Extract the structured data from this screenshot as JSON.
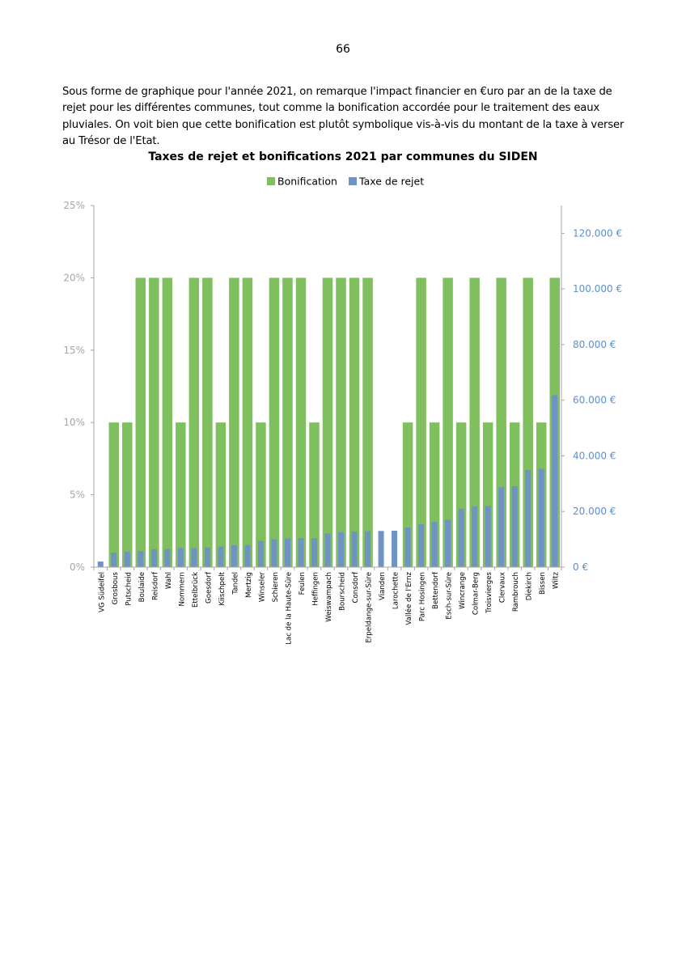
{
  "page": {
    "number": "66",
    "intro": "Sous forme de graphique pour l'année 2021, on remarque l'impact financier en €uro par an de la taxe de rejet pour les différentes communes, tout comme la bonification accordée pour le traitement des eaux pluviales. On voit bien que cette bonification est plutôt symbolique vis-à-vis du montant de la taxe à verser au Trésor de l'Etat."
  },
  "chart_data": {
    "type": "bar",
    "title": "Taxes de rejet et bonifications 2021 par communes du SIDEN",
    "legend_position": "top",
    "grid": false,
    "colors": {
      "bonification": "#7fbf5e",
      "taxe": "#6f93c5",
      "right_axis_text": "#5b8fd1",
      "left_axis_text": "#a6a6a6"
    },
    "categories": [
      "VG Südeifel",
      "Grosbous",
      "Putscheid",
      "Boulaide",
      "Reisdorf",
      "Wahl",
      "Nommern",
      "Ettelbrück",
      "Goesdorf",
      "Kiischpelt",
      "Tandel",
      "Mertzig",
      "Winseler",
      "Schieren",
      "Lac de la Haute-Sûre",
      "Feulen",
      "Heffingen",
      "Weiswampach",
      "Bourscheid",
      "Consdorf",
      "Erpeldange-sur-Sûre",
      "Vianden",
      "Larochette",
      "Vallée de l'Ernz",
      "Parc Hosingen",
      "Bettendorf",
      "Esch-sur-Sûre",
      "Wincrange",
      "Colmar-Berg",
      "Troisvierges",
      "Clervaux",
      "Rambrouch",
      "Diekirch",
      "Bissen",
      "Wiltz"
    ],
    "series": [
      {
        "name": "Bonification",
        "axis": "left",
        "unit": "%",
        "values": [
          0,
          10,
          10,
          20,
          20,
          20,
          10,
          20,
          20,
          10,
          20,
          20,
          10,
          20,
          20,
          20,
          10,
          20,
          20,
          20,
          20,
          0,
          0,
          10,
          20,
          10,
          20,
          10,
          20,
          10,
          20,
          10,
          20,
          10,
          20
        ]
      },
      {
        "name": "Taxe de rejet",
        "axis": "right",
        "unit": "€",
        "values": [
          2000,
          5200,
          5500,
          5800,
          6400,
          6500,
          6800,
          6900,
          7100,
          7400,
          7900,
          8000,
          9400,
          10000,
          10300,
          10400,
          10400,
          12100,
          12500,
          12800,
          12900,
          13000,
          13100,
          14300,
          15400,
          16300,
          17000,
          21000,
          21800,
          22000,
          28700,
          29100,
          34900,
          35300,
          61800
        ]
      }
    ],
    "y_left": {
      "min": 0,
      "max": 25,
      "ticks": [
        "0%",
        "5%",
        "10%",
        "15%",
        "20%",
        "25%"
      ]
    },
    "y_right": {
      "min": 0,
      "max": 130000,
      "ticks": [
        "0 €",
        "20.000 €",
        "40.000 €",
        "60.000 €",
        "80.000 €",
        "100.000 €",
        "120.000 €"
      ]
    }
  }
}
